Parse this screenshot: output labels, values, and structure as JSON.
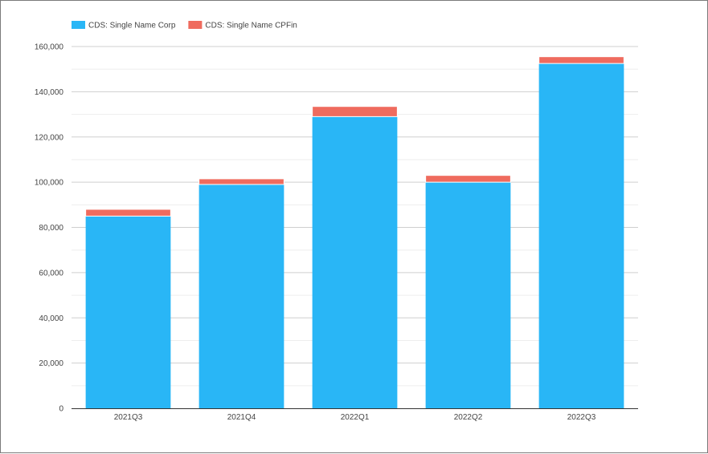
{
  "chart_data": {
    "type": "bar",
    "stacked": true,
    "title": "",
    "xlabel": "",
    "ylabel": "",
    "categories": [
      "2021Q3",
      "2021Q4",
      "2022Q1",
      "2022Q2",
      "2022Q3"
    ],
    "series": [
      {
        "name": "CDS: Single Name Corp",
        "color": "#29b6f6",
        "values": [
          85000,
          99000,
          129000,
          100000,
          152500
        ]
      },
      {
        "name": "CDS: Single Name CPFin",
        "color": "#ef6b5e",
        "values": [
          3000,
          2500,
          4500,
          3000,
          3000
        ]
      }
    ],
    "ylim": [
      0,
      160000
    ],
    "yticks": [
      "0",
      "20,000",
      "40,000",
      "60,000",
      "80,000",
      "100,000",
      "120,000",
      "140,000",
      "160,000"
    ],
    "ytick_values": [
      0,
      20000,
      40000,
      60000,
      80000,
      100000,
      120000,
      140000,
      160000
    ],
    "grid": true,
    "legend_position": "top-left"
  }
}
